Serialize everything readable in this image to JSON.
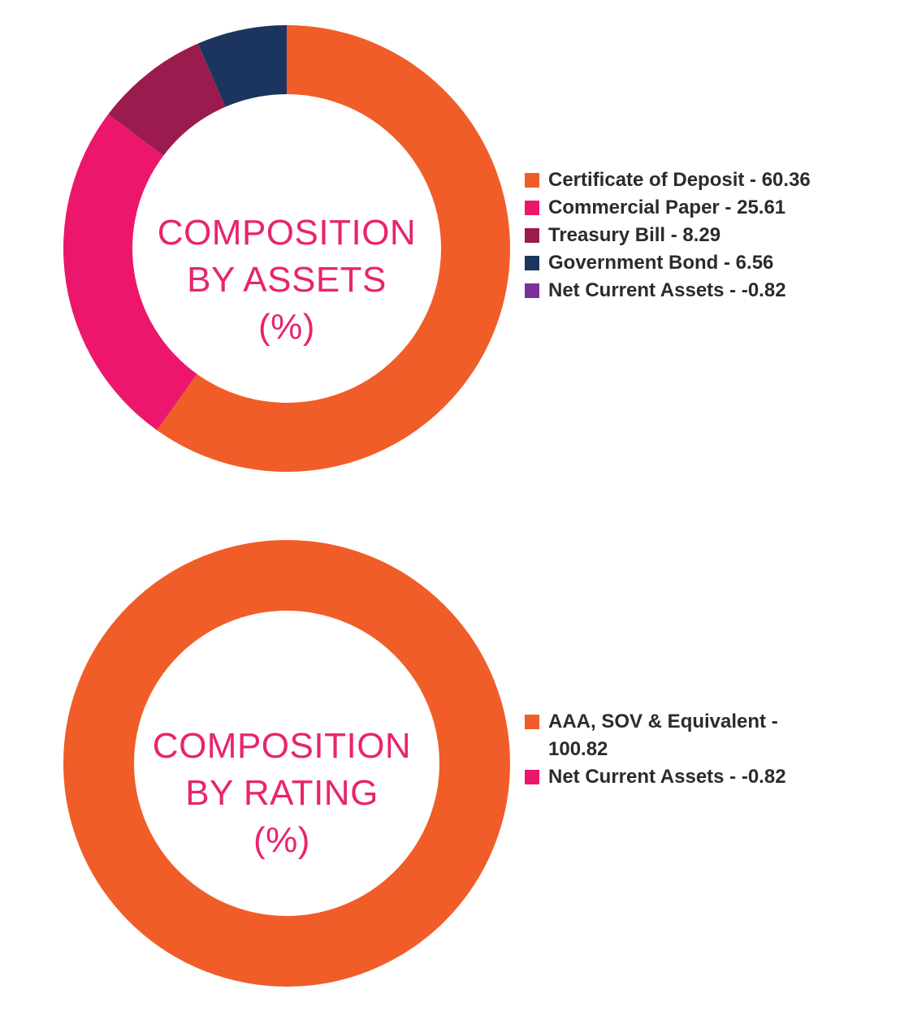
{
  "colors": {
    "title": "#e8246e",
    "legend_text": "#2b2b2b"
  },
  "chart_data": [
    {
      "type": "pie",
      "variant": "donut",
      "title": "COMPOSITION BY ASSETS (%)",
      "title_lines": [
        "COMPOSITION",
        "BY ASSETS",
        "(%)"
      ],
      "legend_position": "right",
      "categories": [
        "Certificate of Deposit",
        "Commercial Paper",
        "Treasury Bill",
        "Government Bond",
        "Net Current Assets"
      ],
      "values": [
        60.36,
        25.61,
        8.29,
        6.56,
        -0.82
      ],
      "colors": [
        "#f05d28",
        "#ec176c",
        "#9b1b4e",
        "#1c355e",
        "#7a3199"
      ],
      "legend": [
        "Certificate of Deposit - 60.36",
        "Commercial Paper - 25.61",
        "Treasury Bill - 8.29",
        "Government Bond - 6.56",
        "Net Current Assets - -0.82"
      ]
    },
    {
      "type": "pie",
      "variant": "donut",
      "title": "COMPOSITION BY RATING (%)",
      "title_lines": [
        "COMPOSITION",
        "BY RATING",
        "(%)"
      ],
      "legend_position": "right",
      "categories": [
        "AAA, SOV & Equivalent",
        "Net Current Assets"
      ],
      "values": [
        100.82,
        -0.82
      ],
      "colors": [
        "#f05d28",
        "#ec176c"
      ],
      "legend": [
        "AAA, SOV & Equivalent - 100.82",
        "Net Current Assets - -0.82"
      ]
    }
  ]
}
